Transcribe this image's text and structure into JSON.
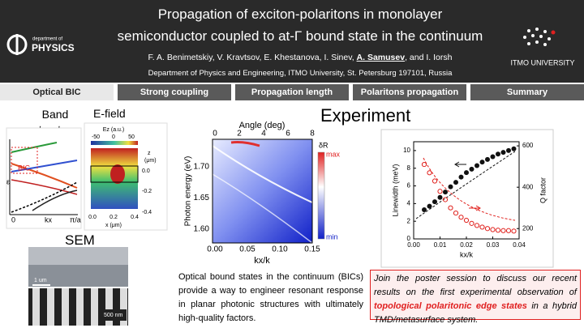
{
  "header": {
    "title_lines": [
      "Propagation of exciton-polaritons in monolayer",
      "semiconductor coupled to at-Γ bound state in the continuum"
    ],
    "authors": [
      "F. A. Benimetskiy, V. Kravtsov, E. Khestanova, I. Sinev, ",
      "A. Samusev",
      ", and I. Iorsh"
    ],
    "affiliation": "Department of Physics and Engineering, ITMO University, St. Petersburg 197101, Russia",
    "left_logo": [
      "department of",
      "PHYSICS"
    ],
    "right_logo": "ITMO UNIVERSITY"
  },
  "tabs": [
    "Optical BIC",
    "Strong coupling",
    "Propagation length",
    "Polaritons propagation",
    "Summary"
  ],
  "left": {
    "band_title": "Band structure",
    "efield_title": "E-field",
    "sem_title": "SEM",
    "band_fig": {
      "y_label": "ε",
      "x_ticks": [
        "0",
        "kx",
        "π/a"
      ],
      "bic": "BIC"
    },
    "efield_fig": {
      "colorbar_label": "Ez (a.u.)",
      "colorbar_ticks": [
        "-50",
        "0",
        "50"
      ],
      "z_label": [
        "z",
        "(μm)"
      ],
      "z_ticks": [
        "0.0",
        "-0.2",
        "-0.4"
      ],
      "x_ticks": [
        "0.0",
        "0.2",
        "0.4"
      ],
      "x_label": "x (μm)"
    },
    "sem_fig": {
      "scale_top": "1 um",
      "scale_bottom": "500 nm"
    }
  },
  "experiment": {
    "title": "Experiment",
    "map": {
      "top_label": "Angle (deg)",
      "top_ticks": [
        "0",
        "2",
        "4",
        "6",
        "8"
      ],
      "y_label": "Photon energy (eV)",
      "y_ticks": [
        "1.60",
        "1.65",
        "1.70"
      ],
      "x_label": "kx/k",
      "x_ticks": [
        "0.00",
        "0.05",
        "0.10",
        "0.15"
      ],
      "colorbar": [
        "δR",
        "max",
        "min"
      ]
    },
    "q_plot": {
      "x_label": "kx/k",
      "y_label": "Linewidth (meV)",
      "y2_label": "Q factor",
      "xlim": [
        0,
        0.04
      ],
      "xticks": [
        {
          "value": 0,
          "label": "0.00"
        },
        {
          "value": 0.01,
          "label": "0.01"
        },
        {
          "value": 0.02,
          "label": "0.02"
        },
        {
          "value": 0.03,
          "label": "0.03"
        },
        {
          "value": 0.04,
          "label": "0.04"
        }
      ],
      "ylim": [
        0,
        11
      ],
      "yticks": [
        0,
        2,
        4,
        6,
        8,
        10
      ],
      "y2lim": [
        150,
        620
      ],
      "y2ticks": [
        200,
        400,
        600
      ],
      "x": [
        0.004,
        0.006,
        0.008,
        0.01,
        0.012,
        0.014,
        0.016,
        0.018,
        0.02,
        0.022,
        0.024,
        0.026,
        0.028,
        0.03,
        0.032,
        0.034,
        0.036,
        0.038
      ],
      "linewidth": [
        3.3,
        3.7,
        4.2,
        4.7,
        5.3,
        5.9,
        6.4,
        7.0,
        7.5,
        7.9,
        8.3,
        8.7,
        9.0,
        9.3,
        9.6,
        9.8,
        10.0,
        10.2
      ],
      "q_factor": [
        510,
        470,
        430,
        380,
        340,
        300,
        275,
        255,
        240,
        225,
        215,
        207,
        200,
        195,
        192,
        190,
        190,
        188
      ],
      "linewidth_color": "#111111",
      "q_color": "#e0201c"
    }
  },
  "paragraph": "Optical bound states in the continuum (BICs) provide a way to engineer resonant response in planar photonic structures with ultimately high-quality factors.",
  "note": [
    "Join the poster session to discuss our recent results on the first experimental observation of ",
    "topological polaritonic edge states",
    " in a hybrid TMD/metasurface system."
  ]
}
